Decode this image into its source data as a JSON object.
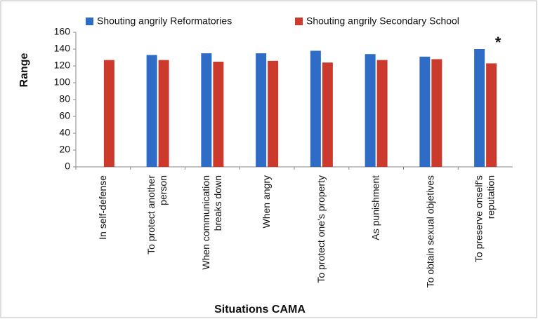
{
  "chart_data": {
    "type": "bar",
    "y_label": "Range",
    "x_label": "Situations CAMA",
    "annotation": "*",
    "categories": [
      "In self-defense",
      "To protect another\nperson",
      "When communication\nbreaks down",
      "When angry",
      "To protect one's property",
      "As punishment",
      "To obtain sexual objetives",
      "To preserve onself's\nreputation"
    ],
    "series": [
      {
        "name": "Shouting angrily Reformatories",
        "color": "#2f6cc6",
        "values": [
          null,
          133,
          135,
          135,
          138,
          134,
          131,
          140
        ]
      },
      {
        "name": "Shouting angrily Secondary School",
        "color": "#cc3a2e",
        "values": [
          127,
          127,
          125,
          126,
          124,
          127,
          128,
          123
        ]
      }
    ],
    "ylim": [
      0,
      160
    ],
    "yticks": [
      0,
      20,
      40,
      60,
      80,
      100,
      120,
      140,
      160
    ]
  }
}
